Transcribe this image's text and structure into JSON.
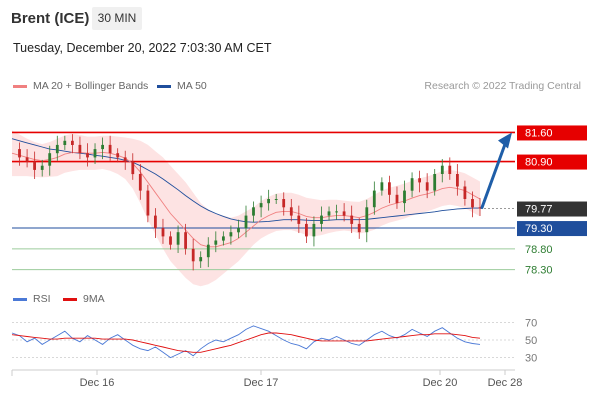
{
  "header": {
    "title": "Brent (ICE)",
    "interval": "30 MIN",
    "timestamp": "Tuesday, December 20, 2022 7:03:30 AM CET"
  },
  "legend": {
    "ma20": {
      "label": "MA 20 + Bollinger Bands",
      "color": "#f08080"
    },
    "ma50": {
      "label": "MA 50",
      "color": "#1f4e9c"
    },
    "rsi": {
      "label": "RSI",
      "color": "#4b79d6"
    },
    "rsi_ma": {
      "label": "9MA",
      "color": "#e01010"
    },
    "copyright": "Research © 2022 Trading Central"
  },
  "colors": {
    "resistance": "#e60000",
    "current": "#333333",
    "pivot": "#1f4e9c",
    "support": "#2e7d32",
    "candle_up": "#2e7d32",
    "candle_down": "#c62828",
    "band_fill": "#fde0e0",
    "arrow": "#1f5ea8"
  },
  "chart_data": [
    {
      "type": "candlestick",
      "ylim": [
        78.05,
        81.9
      ],
      "x_ticks": [
        "Dec 16",
        "Dec 17",
        "Dec 20",
        "Dec 28"
      ],
      "levels": [
        {
          "value": 81.6,
          "label": "81.60",
          "kind": "resistance"
        },
        {
          "value": 80.9,
          "label": "80.90",
          "kind": "resistance"
        },
        {
          "value": 79.77,
          "label": "79.77",
          "kind": "current"
        },
        {
          "value": 79.3,
          "label": "79.30",
          "kind": "pivot"
        },
        {
          "value": 78.8,
          "label": "78.80",
          "kind": "support"
        },
        {
          "value": 78.3,
          "label": "78.30",
          "kind": "support"
        }
      ],
      "forecast_arrow": {
        "from": 79.77,
        "to": 81.6
      },
      "close_path": [
        81.2,
        81.0,
        80.9,
        80.7,
        80.8,
        81.1,
        81.3,
        81.4,
        81.3,
        81.1,
        81.0,
        81.2,
        81.3,
        81.1,
        81.0,
        80.9,
        80.6,
        80.2,
        79.6,
        79.3,
        79.1,
        78.9,
        79.2,
        78.8,
        78.5,
        78.6,
        78.9,
        79.0,
        79.1,
        79.2,
        79.3,
        79.6,
        79.8,
        79.9,
        80.0,
        80.0,
        79.8,
        79.6,
        79.4,
        79.1,
        79.4,
        79.6,
        79.7,
        79.7,
        79.6,
        79.4,
        79.2,
        79.8,
        80.2,
        80.4,
        80.1,
        79.9,
        80.2,
        80.5,
        80.4,
        80.2,
        80.6,
        80.8,
        80.6,
        80.3,
        80.0,
        79.8,
        79.77
      ],
      "ma20": [
        81.1,
        81.05,
        81.0,
        80.95,
        80.92,
        80.95,
        81.0,
        81.08,
        81.12,
        81.12,
        81.1,
        81.1,
        81.12,
        81.1,
        81.05,
        80.98,
        80.85,
        80.65,
        80.4,
        80.15,
        79.9,
        79.65,
        79.45,
        79.25,
        79.05,
        78.9,
        78.85,
        78.85,
        78.9,
        78.95,
        79.05,
        79.2,
        79.35,
        79.5,
        79.6,
        79.68,
        79.7,
        79.7,
        79.65,
        79.58,
        79.55,
        79.55,
        79.58,
        79.6,
        79.6,
        79.58,
        79.55,
        79.6,
        79.68,
        79.78,
        79.85,
        79.9,
        79.95,
        80.02,
        80.08,
        80.12,
        80.18,
        80.25,
        80.28,
        80.25,
        80.2,
        80.1,
        80.0
      ],
      "ma50": [
        81.45,
        81.4,
        81.35,
        81.3,
        81.25,
        81.2,
        81.18,
        81.15,
        81.12,
        81.1,
        81.08,
        81.05,
        81.03,
        81.0,
        80.97,
        80.93,
        80.88,
        80.8,
        80.7,
        80.6,
        80.48,
        80.35,
        80.22,
        80.08,
        79.95,
        79.83,
        79.73,
        79.65,
        79.58,
        79.52,
        79.48,
        79.45,
        79.44,
        79.45,
        79.46,
        79.48,
        79.5,
        79.5,
        79.5,
        79.49,
        79.48,
        79.48,
        79.49,
        79.5,
        79.5,
        79.5,
        79.5,
        79.51,
        79.53,
        79.55,
        79.57,
        79.59,
        79.61,
        79.63,
        79.65,
        79.67,
        79.69,
        79.72,
        79.74,
        79.76,
        79.77,
        79.78,
        79.78
      ],
      "band_width": [
        0.55,
        0.5,
        0.45,
        0.42,
        0.4,
        0.42,
        0.45,
        0.45,
        0.45,
        0.42,
        0.4,
        0.4,
        0.4,
        0.42,
        0.45,
        0.5,
        0.6,
        0.75,
        0.9,
        1.0,
        1.1,
        1.15,
        1.15,
        1.15,
        1.1,
        1.0,
        0.9,
        0.8,
        0.7,
        0.6,
        0.55,
        0.5,
        0.45,
        0.45,
        0.45,
        0.45,
        0.45,
        0.45,
        0.45,
        0.45,
        0.45,
        0.42,
        0.4,
        0.38,
        0.36,
        0.36,
        0.38,
        0.4,
        0.42,
        0.42,
        0.42,
        0.42,
        0.42,
        0.42,
        0.42,
        0.42,
        0.42,
        0.42,
        0.42,
        0.42,
        0.42,
        0.42,
        0.42
      ]
    },
    {
      "type": "line",
      "title": "RSI",
      "ylim": [
        25,
        75
      ],
      "y_ticks": [
        70,
        50,
        30
      ],
      "rsi": [
        58,
        55,
        48,
        52,
        45,
        50,
        55,
        60,
        52,
        48,
        55,
        50,
        45,
        52,
        56,
        50,
        44,
        40,
        38,
        42,
        36,
        30,
        34,
        38,
        32,
        40,
        46,
        50,
        48,
        52,
        56,
        62,
        66,
        63,
        60,
        55,
        50,
        46,
        44,
        40,
        48,
        52,
        50,
        54,
        50,
        46,
        44,
        50,
        56,
        60,
        55,
        52,
        56,
        62,
        58,
        54,
        60,
        64,
        58,
        52,
        48,
        46,
        45
      ],
      "rsi_ma": [
        56,
        55,
        54,
        53,
        52,
        51,
        51,
        52,
        52,
        52,
        52,
        52,
        51,
        51,
        51,
        51,
        50,
        48,
        46,
        44,
        42,
        40,
        38,
        37,
        36,
        36,
        38,
        40,
        42,
        44,
        47,
        50,
        53,
        56,
        58,
        58,
        57,
        56,
        54,
        52,
        50,
        49,
        49,
        49,
        49,
        49,
        49,
        49,
        50,
        51,
        52,
        53,
        54,
        55,
        56,
        56,
        57,
        57,
        57,
        56,
        55,
        53,
        52
      ]
    }
  ]
}
